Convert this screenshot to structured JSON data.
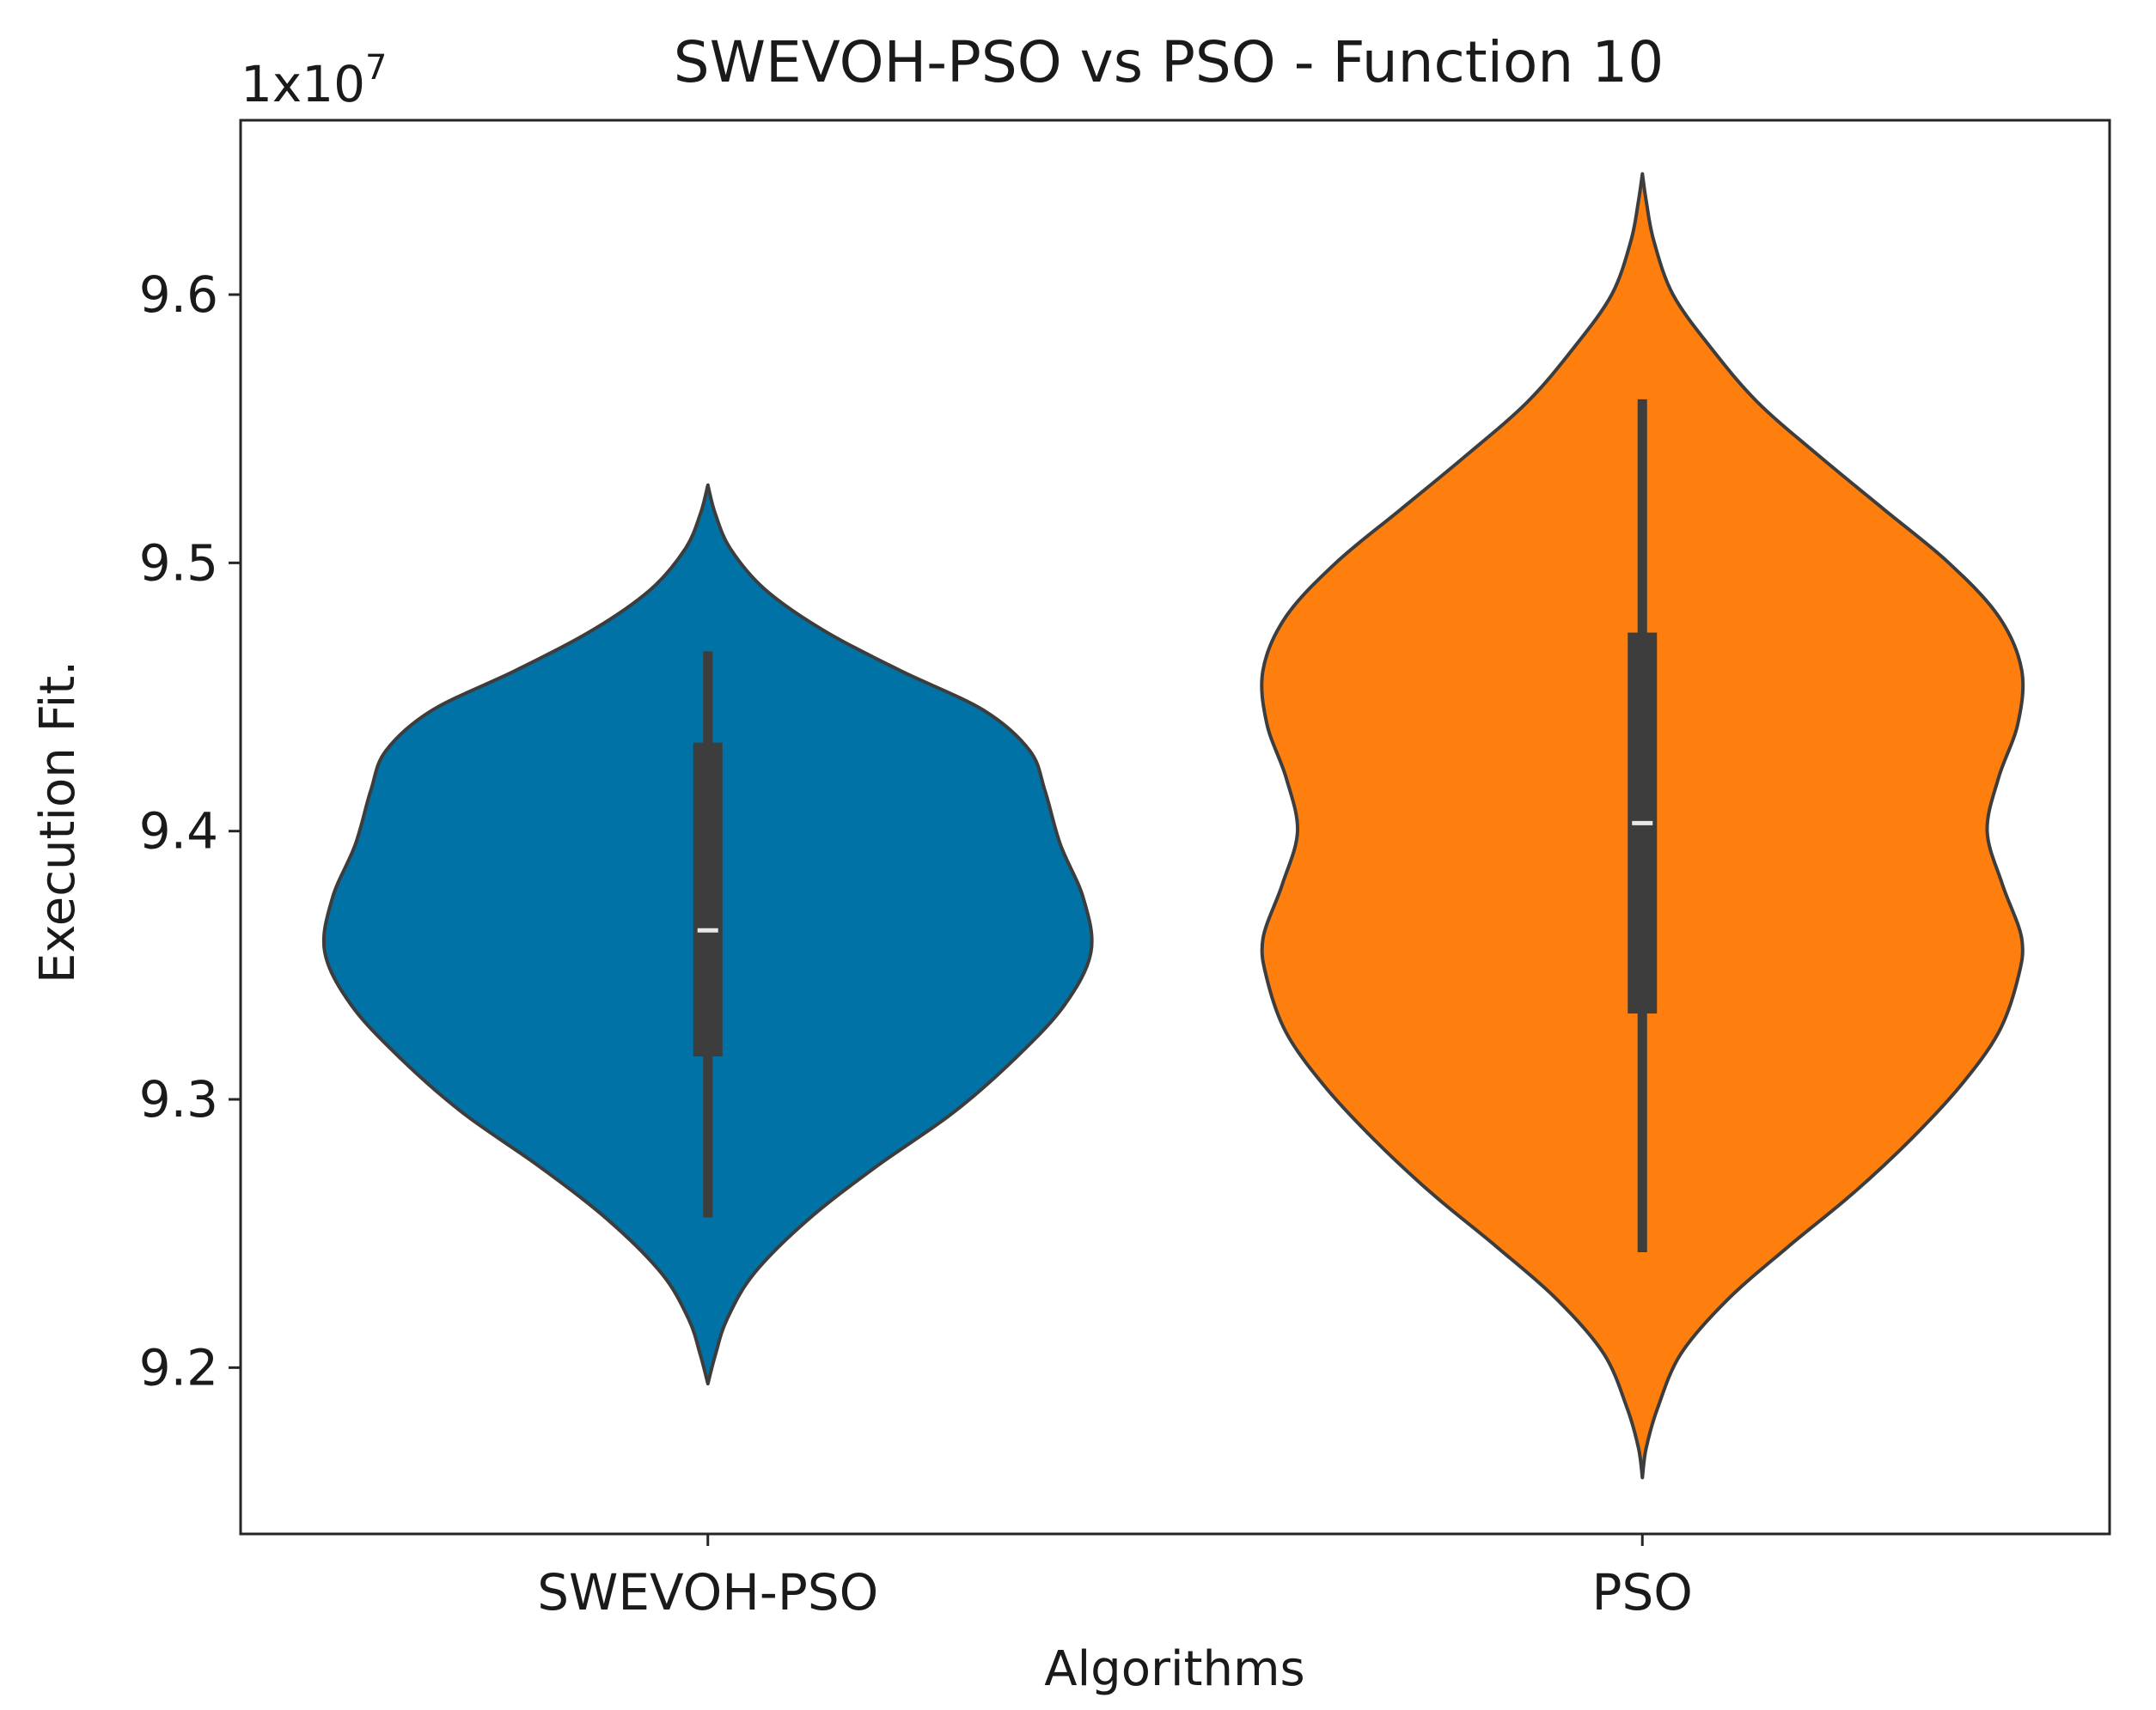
{
  "chart_data": {
    "type": "violin",
    "title": "SWEVOH-PSO vs PSO - Function 10",
    "xlabel": "Algorithms",
    "ylabel": "Execution Fit.",
    "y_offset_label": {
      "base": "1x10",
      "exponent": "7"
    },
    "scale_factor": 10000000,
    "ylim": [
      9.138,
      9.665
    ],
    "yticks": [
      9.2,
      9.3,
      9.4,
      9.5,
      9.6
    ],
    "yticks_labels": [
      "9.2",
      "9.3",
      "9.4",
      "9.5",
      "9.6"
    ],
    "categories": [
      "SWEVOH-PSO",
      "PSO"
    ],
    "grid": false,
    "series": [
      {
        "name": "SWEVOH-PSO",
        "color": "#0072a6",
        "kde_min": 9.194,
        "kde_max": 9.529,
        "whisker_low": 9.256,
        "q1": 9.316,
        "median": 9.363,
        "q3": 9.433,
        "whisker_high": 9.467,
        "density_profile": [
          [
            9.194,
            0.0
          ],
          [
            9.205,
            0.02
          ],
          [
            9.218,
            0.05
          ],
          [
            9.235,
            0.12
          ],
          [
            9.255,
            0.26
          ],
          [
            9.275,
            0.44
          ],
          [
            9.295,
            0.64
          ],
          [
            9.315,
            0.8
          ],
          [
            9.335,
            0.93
          ],
          [
            9.355,
            1.0
          ],
          [
            9.375,
            0.98
          ],
          [
            9.395,
            0.92
          ],
          [
            9.415,
            0.88
          ],
          [
            9.43,
            0.84
          ],
          [
            9.445,
            0.72
          ],
          [
            9.46,
            0.5
          ],
          [
            9.475,
            0.3
          ],
          [
            9.49,
            0.15
          ],
          [
            9.505,
            0.06
          ],
          [
            9.518,
            0.02
          ],
          [
            9.529,
            0.0
          ]
        ]
      },
      {
        "name": "PSO",
        "color": "#ff7f0e",
        "kde_min": 9.159,
        "kde_max": 9.645,
        "whisker_low": 9.243,
        "q1": 9.332,
        "median": 9.403,
        "q3": 9.474,
        "whisker_high": 9.561,
        "density_profile": [
          [
            9.159,
            0.0
          ],
          [
            9.17,
            0.01
          ],
          [
            9.185,
            0.04
          ],
          [
            9.205,
            0.1
          ],
          [
            9.225,
            0.22
          ],
          [
            9.245,
            0.38
          ],
          [
            9.265,
            0.55
          ],
          [
            9.285,
            0.7
          ],
          [
            9.305,
            0.83
          ],
          [
            9.325,
            0.93
          ],
          [
            9.345,
            0.98
          ],
          [
            9.36,
            0.99
          ],
          [
            9.38,
            0.94
          ],
          [
            9.4,
            0.9
          ],
          [
            9.42,
            0.93
          ],
          [
            9.44,
            0.98
          ],
          [
            9.46,
            0.99
          ],
          [
            9.48,
            0.93
          ],
          [
            9.5,
            0.8
          ],
          [
            9.52,
            0.63
          ],
          [
            9.54,
            0.46
          ],
          [
            9.56,
            0.3
          ],
          [
            9.58,
            0.18
          ],
          [
            9.6,
            0.08
          ],
          [
            9.62,
            0.03
          ],
          [
            9.635,
            0.01
          ],
          [
            9.645,
            0.0
          ]
        ]
      }
    ]
  }
}
